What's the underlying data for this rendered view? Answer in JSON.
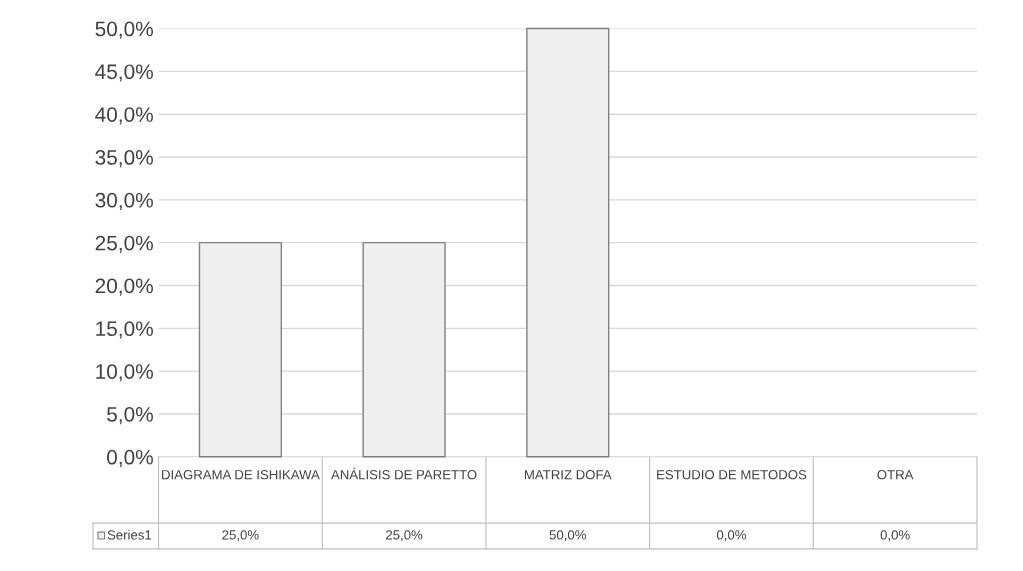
{
  "chart_data": {
    "type": "bar",
    "categories": [
      "DIAGRAMA DE ISHIKAWA",
      "ANÁLISIS DE PARETTO",
      "MATRIZ DOFA",
      "ESTUDIO DE METODOS",
      "OTRA"
    ],
    "series": [
      {
        "name": "Series1",
        "color": "#efefef",
        "values": [
          25,
          25,
          50,
          0,
          0
        ],
        "value_labels": [
          "25,0%",
          "25,0%",
          "50,0%",
          "0,0%",
          "0,0%"
        ]
      }
    ],
    "ylim": [
      0,
      50
    ],
    "yticks": [
      {
        "value": 0,
        "label": "0,0%"
      },
      {
        "value": 5,
        "label": "5,0%"
      },
      {
        "value": 10,
        "label": "10,0%"
      },
      {
        "value": 15,
        "label": "15,0%"
      },
      {
        "value": 20,
        "label": "20,0%"
      },
      {
        "value": 25,
        "label": "25,0%"
      },
      {
        "value": 30,
        "label": "30,0%"
      },
      {
        "value": 35,
        "label": "35,0%"
      },
      {
        "value": 40,
        "label": "40,0%"
      },
      {
        "value": 45,
        "label": "45,0%"
      },
      {
        "value": 50,
        "label": "50,0%"
      }
    ],
    "grid": "y",
    "legend": "bottom left"
  }
}
